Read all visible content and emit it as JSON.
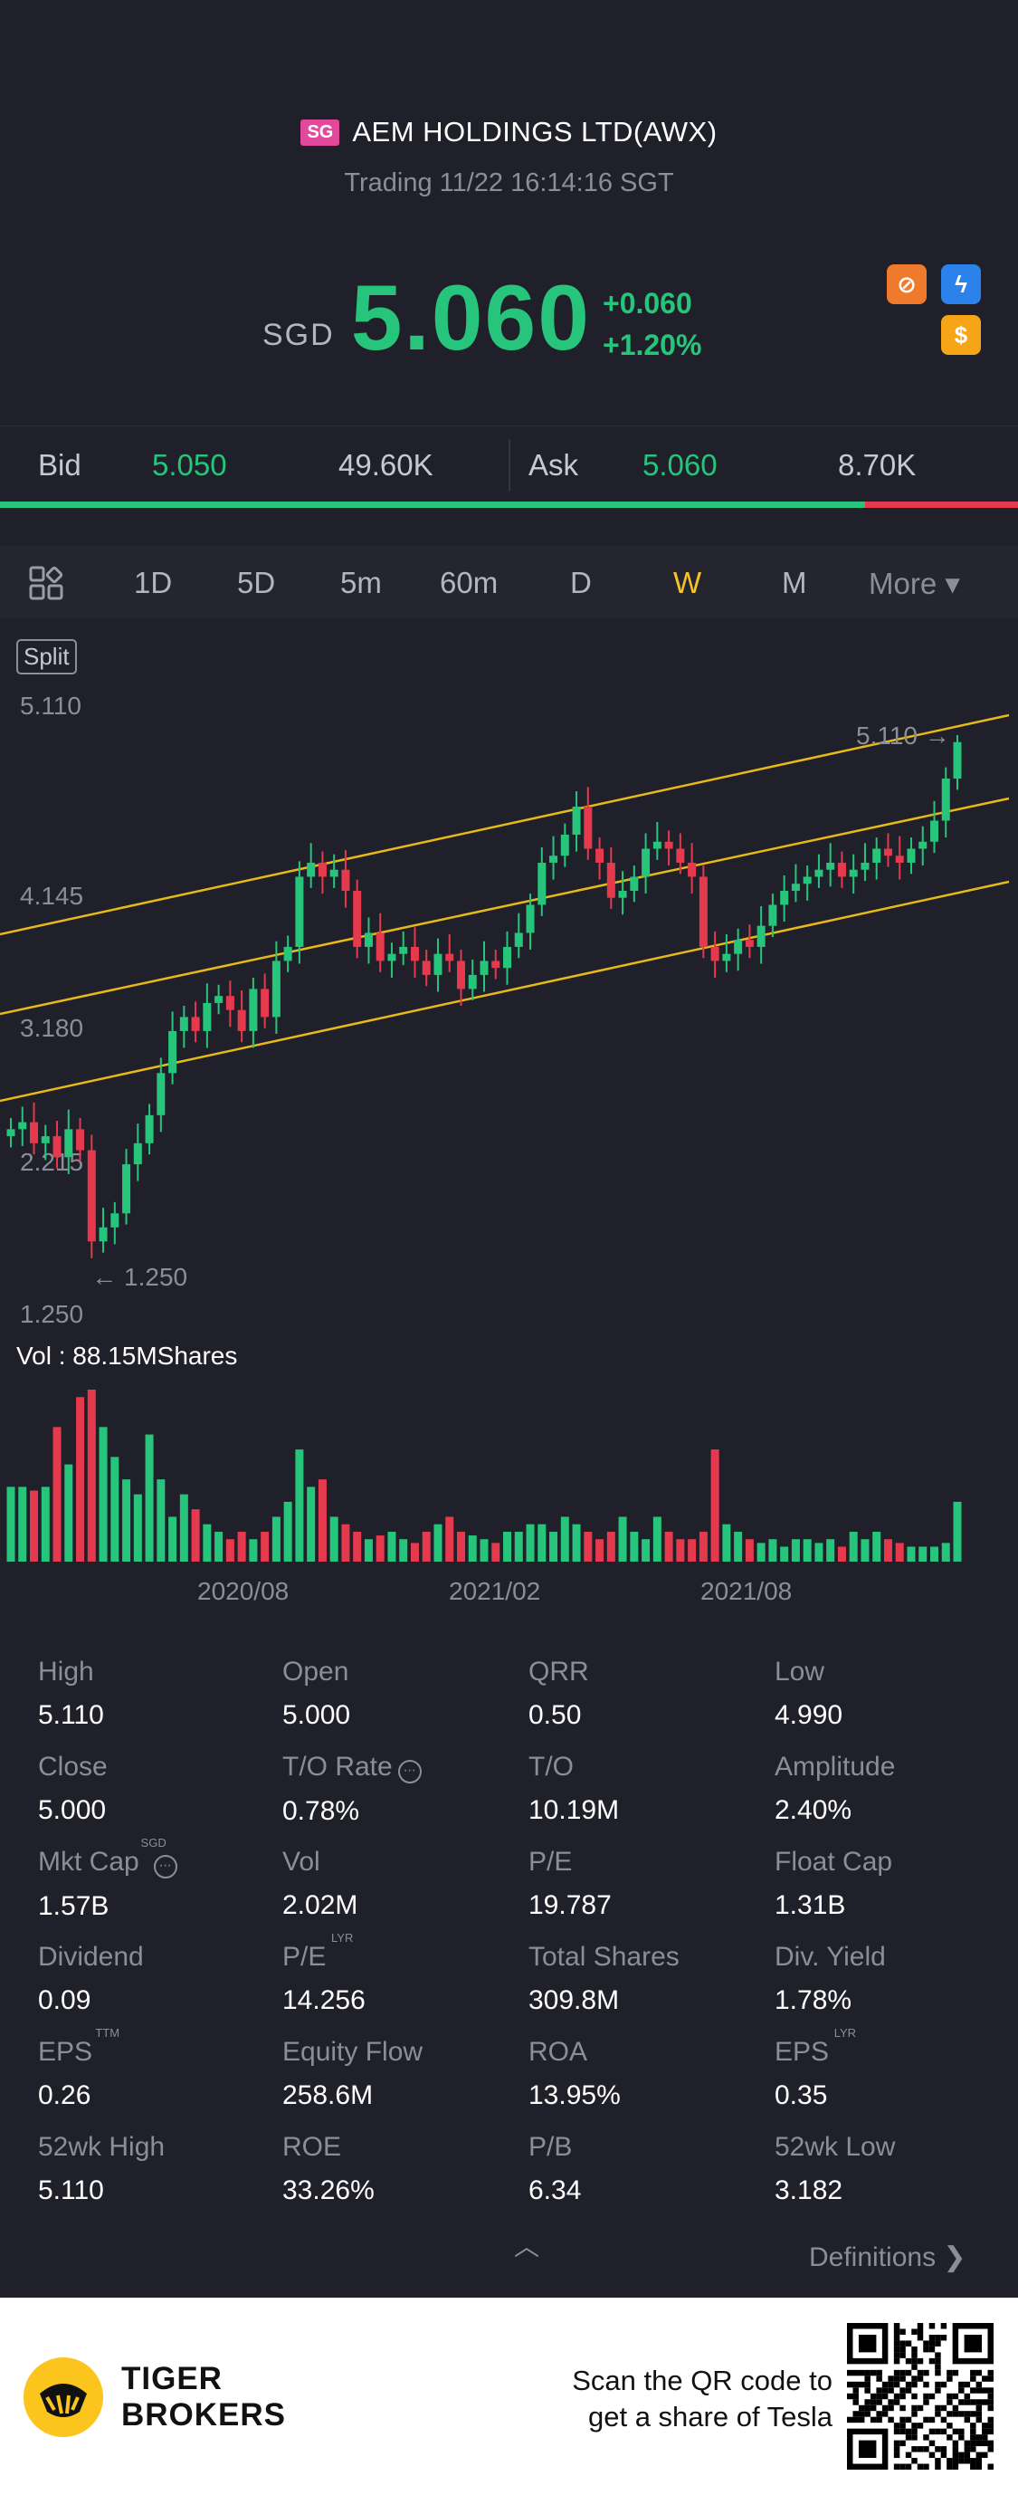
{
  "header": {
    "market_badge": "SG",
    "stock_name": "AEM HOLDINGS LTD(AWX)",
    "trading_status": "Trading 11/22 16:14:16 SGT",
    "currency": "SGD",
    "price": "5.060",
    "change": "+0.060",
    "change_pct": "+1.20%",
    "badges": [
      {
        "icon": "no-short-icon",
        "glyph": "⊘"
      },
      {
        "icon": "lightning-icon",
        "glyph": "ϟ"
      },
      {
        "icon": "dollar-icon",
        "glyph": "$"
      }
    ]
  },
  "bid_ask": {
    "bid_label": "Bid",
    "bid_price": "5.050",
    "bid_volume": "49.60K",
    "ask_label": "Ask",
    "ask_price": "5.060",
    "ask_volume": "8.70K",
    "buy_fraction": 0.85
  },
  "tabs": {
    "items": [
      "1D",
      "5D",
      "5m",
      "60m",
      "D",
      "W",
      "M"
    ],
    "active": "W",
    "more": "More ▾"
  },
  "chart": {
    "split_label": "Split",
    "y_ticks": [
      "5.110",
      "4.145",
      "3.180",
      "2.215",
      "1.250"
    ],
    "high_marker": "5.110",
    "low_marker": "1.250",
    "volume_label": "Vol  : 88.15MShares",
    "x_ticks": [
      "2020/08",
      "2021/02",
      "2021/08"
    ]
  },
  "chart_data": {
    "type": "candlestick",
    "interval": "W",
    "ylim": [
      1.25,
      5.11
    ],
    "high": 5.11,
    "low": 1.25,
    "closes": [
      2.3,
      2.35,
      2.2,
      2.25,
      2.1,
      2.3,
      2.15,
      1.5,
      1.6,
      1.7,
      2.05,
      2.2,
      2.4,
      2.7,
      3.0,
      3.1,
      3.0,
      3.2,
      3.25,
      3.15,
      3.0,
      3.3,
      3.1,
      3.5,
      3.6,
      4.1,
      4.2,
      4.1,
      4.15,
      4.0,
      3.6,
      3.7,
      3.5,
      3.55,
      3.6,
      3.5,
      3.4,
      3.55,
      3.5,
      3.3,
      3.4,
      3.5,
      3.45,
      3.6,
      3.7,
      3.9,
      4.2,
      4.25,
      4.4,
      4.6,
      4.3,
      4.2,
      3.95,
      4.0,
      4.1,
      4.3,
      4.35,
      4.3,
      4.2,
      4.1,
      3.6,
      3.5,
      3.55,
      3.65,
      3.6,
      3.75,
      3.9,
      4.0,
      4.05,
      4.1,
      4.15,
      4.2,
      4.1,
      4.15,
      4.2,
      4.3,
      4.25,
      4.2,
      4.3,
      4.35,
      4.5,
      4.8,
      5.06
    ],
    "volume_unit": "MShares",
    "volume_current": 88.15
  },
  "stats": [
    {
      "label": "High",
      "value": "5.110"
    },
    {
      "label": "Open",
      "value": "5.000"
    },
    {
      "label": "QRR",
      "value": "0.50"
    },
    {
      "label": "Low",
      "value": "4.990"
    },
    {
      "label": "Close",
      "value": "5.000"
    },
    {
      "label": "T/O Rate",
      "value": "0.78%",
      "info": "⋯"
    },
    {
      "label": "T/O",
      "value": "10.19M"
    },
    {
      "label": "Amplitude",
      "value": "2.40%"
    },
    {
      "label": "Mkt Cap",
      "value": "1.57B",
      "sup": "SGD",
      "info": "⋯"
    },
    {
      "label": "Vol",
      "value": "2.02M"
    },
    {
      "label": "P/E",
      "value": "19.787"
    },
    {
      "label": "Float Cap",
      "value": "1.31B"
    },
    {
      "label": "Dividend",
      "value": "0.09"
    },
    {
      "label": "P/E",
      "value": "14.256",
      "sup": "LYR"
    },
    {
      "label": "Total Shares",
      "value": "309.8M"
    },
    {
      "label": "Div. Yield",
      "value": "1.78%"
    },
    {
      "label": "EPS",
      "value": "0.26",
      "sup": "TTM"
    },
    {
      "label": "Equity Flow",
      "value": "258.6M"
    },
    {
      "label": "ROA",
      "value": "13.95%"
    },
    {
      "label": "EPS",
      "value": "0.35",
      "sup": "LYR"
    },
    {
      "label": "52wk High",
      "value": "5.110"
    },
    {
      "label": "ROE",
      "value": "33.26%"
    },
    {
      "label": "P/B",
      "value": "6.34"
    },
    {
      "label": "52wk Low",
      "value": "3.182"
    }
  ],
  "definitions_link": "Definitions ❯",
  "footer": {
    "brand_line1": "TIGER",
    "brand_line2": "BROKERS",
    "scan_line1": "Scan the QR code to",
    "scan_line2": "get a share of Tesla"
  },
  "colors": {
    "up": "#27c47b",
    "down": "#e5394e",
    "channel": "#e8b918",
    "active_tab": "#f8c32a"
  }
}
